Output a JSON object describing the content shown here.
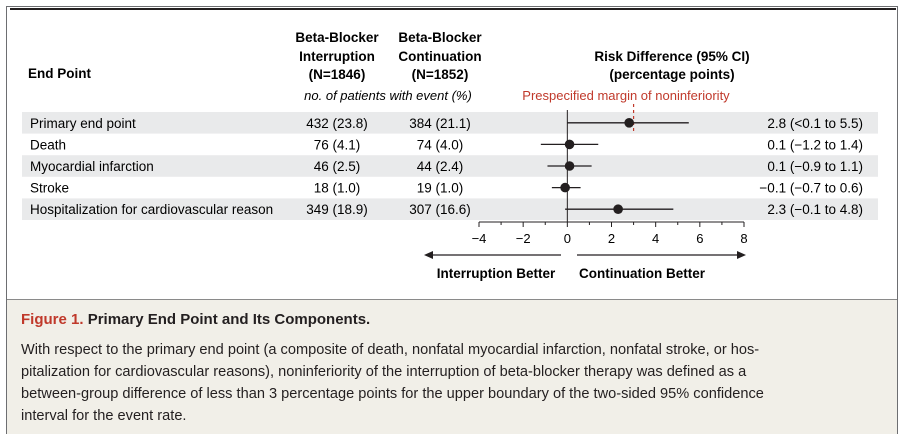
{
  "header": {
    "end_point": "End Point",
    "col1": [
      "Beta-Blocker",
      "Interruption",
      "(N=1846)"
    ],
    "col2": [
      "Beta-Blocker",
      "Continuation",
      "(N=1852)"
    ],
    "subheader": "no. of patients with event (%)",
    "risk": [
      "Risk Difference (95% CI)",
      "(percentage points)"
    ],
    "margin_label": "Prespecified margin of noninferiority"
  },
  "chart_data": {
    "type": "forest",
    "title": "",
    "xlabel_left": "Interruption Better",
    "xlabel_right": "Continuation Better",
    "xlim": [
      -4,
      8
    ],
    "ticks": [
      -4,
      -2,
      0,
      2,
      4,
      6,
      8
    ],
    "tick_labels": [
      "−4",
      "−2",
      "0",
      "2",
      "4",
      "6",
      "8"
    ],
    "noninferiority_margin": 3,
    "rows": [
      {
        "label": "Primary end point",
        "interruption": "432 (23.8)",
        "continuation": "384 (21.1)",
        "estimate": 2.8,
        "ci_low": 0.0,
        "ci_high": 5.5,
        "ci_text": "2.8 (<0.1 to 5.5)"
      },
      {
        "label": "Death",
        "interruption": "76 (4.1)",
        "continuation": "74 (4.0)",
        "estimate": 0.1,
        "ci_low": -1.2,
        "ci_high": 1.4,
        "ci_text": "0.1 (−1.2 to 1.4)"
      },
      {
        "label": "Myocardial infarction",
        "interruption": "46 (2.5)",
        "continuation": "44 (2.4)",
        "estimate": 0.1,
        "ci_low": -0.9,
        "ci_high": 1.1,
        "ci_text": "0.1 (−0.9 to 1.1)"
      },
      {
        "label": "Stroke",
        "interruption": "18 (1.0)",
        "continuation": "19 (1.0)",
        "estimate": -0.1,
        "ci_low": -0.7,
        "ci_high": 0.6,
        "ci_text": "−0.1 (−0.7 to 0.6)"
      },
      {
        "label": "Hospitalization for cardiovascular reason",
        "interruption": "349 (18.9)",
        "continuation": "307 (16.6)",
        "estimate": 2.3,
        "ci_low": -0.1,
        "ci_high": 4.8,
        "ci_text": "2.3 (−0.1 to 4.8)"
      }
    ],
    "colors": {
      "margin": "#c0392b",
      "stripe": "#e9eaeb",
      "ink": "#231f20"
    }
  },
  "caption": {
    "label": "Figure 1.",
    "title": "Primary End Point and Its Components.",
    "lines": [
      "With respect to the primary end point (a composite of death, nonfatal myocardial infarction, nonfatal stroke, or hos-",
      "pitalization for cardiovascular reasons), noninferiority of the interruption of beta-blocker therapy was defined as a",
      "between-group difference of less than 3 percentage points for the upper boundary of the two-sided 95% confidence",
      "interval for the event rate."
    ],
    "background": "#f1efe8"
  }
}
